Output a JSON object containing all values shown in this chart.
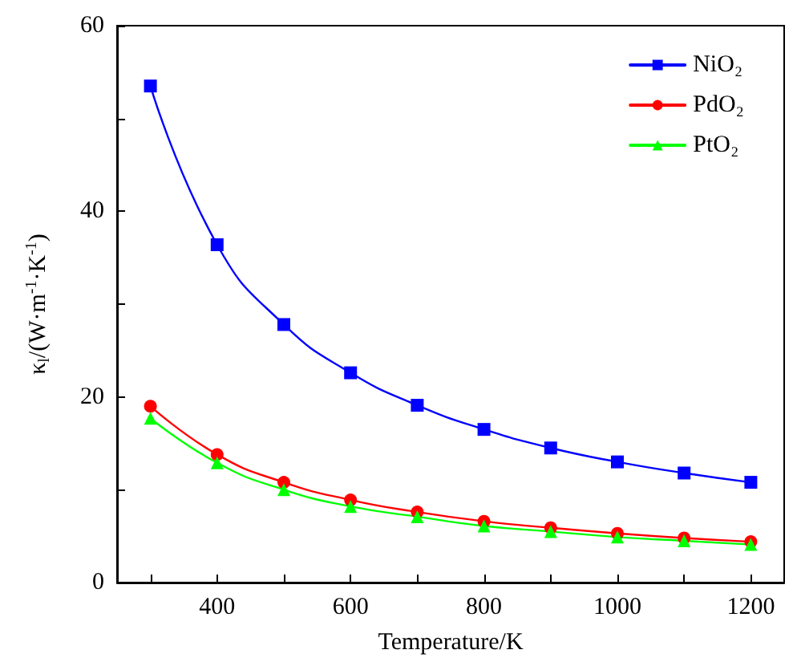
{
  "chart_data": {
    "type": "line",
    "xlabel": "Temperature/K",
    "ylabel": "κ$_{l}$/(W·m$^{-1}$·K$^{-1}$)",
    "x": [
      300,
      400,
      500,
      600,
      700,
      800,
      900,
      1000,
      1100,
      1200
    ],
    "series": [
      {
        "name": "NiO₂",
        "color": "#0000ff",
        "marker": "square",
        "values": [
          53.5,
          36.4,
          27.8,
          22.6,
          19.1,
          16.5,
          14.5,
          13.0,
          11.8,
          10.8
        ]
      },
      {
        "name": "PdO₂",
        "color": "#ff0000",
        "marker": "circle",
        "values": [
          19.0,
          13.8,
          10.8,
          8.9,
          7.6,
          6.6,
          5.9,
          5.3,
          4.8,
          4.4
        ]
      },
      {
        "name": "PtO₂",
        "color": "#00ff00",
        "marker": "triangle",
        "values": [
          17.7,
          12.9,
          10.0,
          8.2,
          7.1,
          6.1,
          5.5,
          4.9,
          4.5,
          4.1
        ]
      }
    ],
    "xlim": [
      250,
      1250
    ],
    "xticks": [
      {
        "value": 300,
        "label": null
      },
      400,
      {
        "value": 500,
        "label": null
      },
      600,
      {
        "value": 700,
        "label": null
      },
      800,
      {
        "value": 900,
        "label": null
      },
      1000,
      {
        "value": 1100,
        "label": null
      },
      1200
    ],
    "ylim": [
      0,
      60
    ],
    "yticks": [
      0,
      {
        "value": 10,
        "label": null
      },
      20,
      {
        "value": 30,
        "label": null
      },
      40,
      {
        "value": 50,
        "label": null
      },
      60
    ],
    "grid": false,
    "legend": "top right",
    "line_style": "solid"
  }
}
